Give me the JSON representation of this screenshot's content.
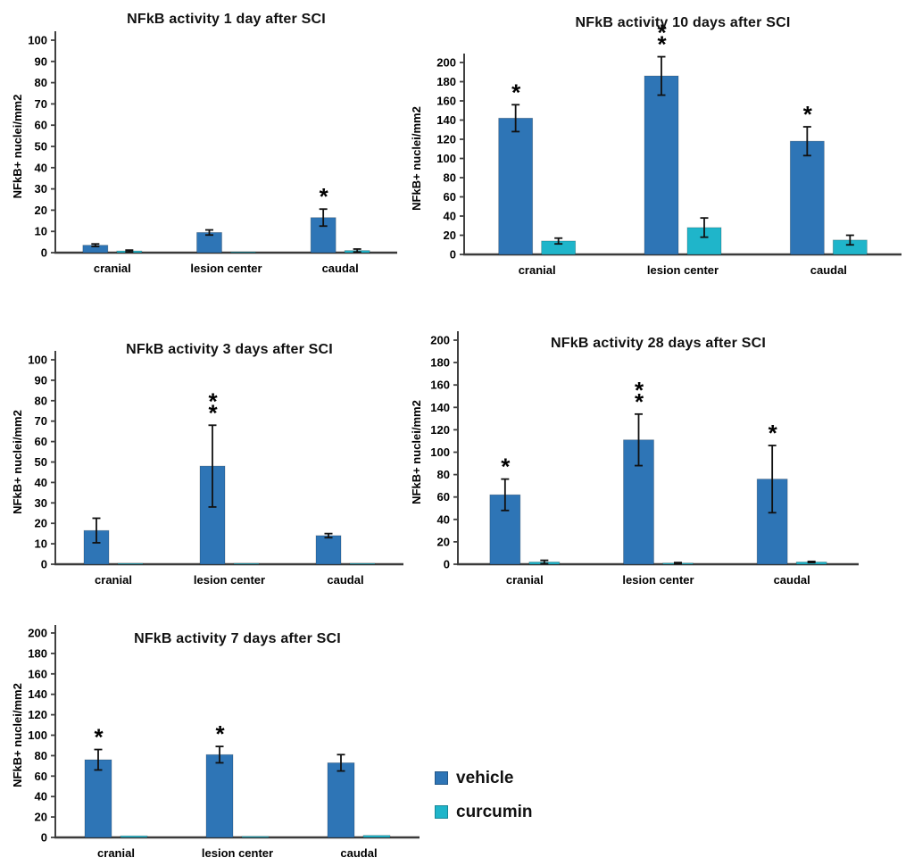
{
  "legend": {
    "position": "bottom-right",
    "items": [
      {
        "label": "vehicle",
        "color": "#2e75b6"
      },
      {
        "label": "curcumin",
        "color": "#1fb5ca"
      }
    ]
  },
  "chart_data": [
    {
      "type": "bar",
      "title": "NFkB activity 1 day after SCI",
      "ylabel": "NFkB+ nuclei/mm2",
      "xlabel": "",
      "ylim": [
        0,
        100
      ],
      "ystep": 10,
      "grid": false,
      "categories": [
        "cranial",
        "lesion center",
        "caudal"
      ],
      "series": [
        {
          "name": "vehicle",
          "color": "#2e75b6",
          "values": [
            3.5,
            9.5,
            16.5
          ],
          "errors": [
            0.6,
            1.2,
            4
          ],
          "sig": [
            "",
            "",
            "*"
          ]
        },
        {
          "name": "curcumin",
          "color": "#1fb5ca",
          "values": [
            0.8,
            0.3,
            1
          ],
          "errors": [
            0.4,
            0,
            0.7
          ],
          "sig": [
            "",
            "",
            ""
          ]
        }
      ]
    },
    {
      "type": "bar",
      "title": "NFkB activity 10 days after SCI",
      "ylabel": "NFkB+ nuclei/mm2",
      "xlabel": "",
      "ylim": [
        0,
        200
      ],
      "ystep": 20,
      "grid": false,
      "categories": [
        "cranial",
        "lesion center",
        "caudal"
      ],
      "series": [
        {
          "name": "vehicle",
          "color": "#2e75b6",
          "values": [
            142,
            186,
            118
          ],
          "errors": [
            14,
            20,
            15
          ],
          "sig": [
            "*",
            "**",
            "*"
          ]
        },
        {
          "name": "curcumin",
          "color": "#1fb5ca",
          "values": [
            14,
            28,
            15
          ],
          "errors": [
            3,
            10,
            5
          ],
          "sig": [
            "",
            "",
            ""
          ]
        }
      ]
    },
    {
      "type": "bar",
      "title": "NFkB activity 3 days after SCI",
      "ylabel": "NFkB+ nuclei/mm2",
      "xlabel": "",
      "ylim": [
        0,
        100
      ],
      "ystep": 10,
      "grid": false,
      "categories": [
        "cranial",
        "lesion center",
        "caudal"
      ],
      "series": [
        {
          "name": "vehicle",
          "color": "#2e75b6",
          "values": [
            16.5,
            48,
            14
          ],
          "errors": [
            6,
            20,
            1
          ],
          "sig": [
            "",
            "**",
            ""
          ]
        },
        {
          "name": "curcumin",
          "color": "#1fb5ca",
          "values": [
            0.4,
            0.4,
            0.4
          ],
          "errors": [
            0,
            0,
            0
          ],
          "sig": [
            "",
            "",
            ""
          ]
        }
      ]
    },
    {
      "type": "bar",
      "title": "NFkB activity 28 days after SCI",
      "ylabel": "NFkB+ nuclei/mm2",
      "xlabel": "",
      "ylim": [
        0,
        200
      ],
      "ystep": 20,
      "grid": false,
      "categories": [
        "cranial",
        "lesion center",
        "caudal"
      ],
      "series": [
        {
          "name": "vehicle",
          "color": "#2e75b6",
          "values": [
            62,
            111,
            76
          ],
          "errors": [
            14,
            23,
            30
          ],
          "sig": [
            "*",
            "**",
            "*"
          ]
        },
        {
          "name": "curcumin",
          "color": "#1fb5ca",
          "values": [
            2,
            1,
            2
          ],
          "errors": [
            1.5,
            0.5,
            0.5
          ],
          "sig": [
            "",
            "",
            ""
          ]
        }
      ]
    },
    {
      "type": "bar",
      "title": "NFkB activity 7 days after SCI",
      "ylabel": "NFkB+ nuclei/mm2",
      "xlabel": "",
      "ylim": [
        0,
        200
      ],
      "ystep": 20,
      "grid": false,
      "categories": [
        "cranial",
        "lesion center",
        "caudal"
      ],
      "series": [
        {
          "name": "vehicle",
          "color": "#2e75b6",
          "values": [
            76,
            81,
            73
          ],
          "errors": [
            10,
            8,
            8
          ],
          "sig": [
            "*",
            "*",
            ""
          ]
        },
        {
          "name": "curcumin",
          "color": "#1fb5ca",
          "values": [
            1.5,
            1,
            2
          ],
          "errors": [
            0,
            0,
            0
          ],
          "sig": [
            "",
            "",
            ""
          ]
        }
      ]
    }
  ]
}
